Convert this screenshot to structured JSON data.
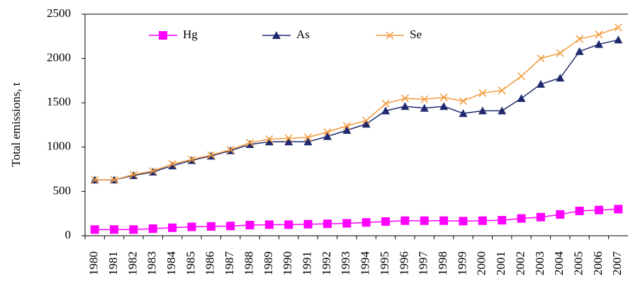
{
  "chart_data": {
    "type": "line",
    "y_label": "Total emissions, t",
    "categories": [
      "1980",
      "1981",
      "1982",
      "1983",
      "1984",
      "1985",
      "1986",
      "1987",
      "1988",
      "1989",
      "1990",
      "1991",
      "1992",
      "1993",
      "1994",
      "1995",
      "1996",
      "1997",
      "1998",
      "1999",
      "2000",
      "2001",
      "2002",
      "2003",
      "2004",
      "2005",
      "2006",
      "2007"
    ],
    "series": [
      {
        "name": "Hg",
        "color": "#ff00ff",
        "marker": "square",
        "values": [
          70,
          70,
          70,
          80,
          90,
          100,
          105,
          110,
          120,
          125,
          125,
          130,
          135,
          140,
          150,
          160,
          170,
          170,
          170,
          165,
          170,
          175,
          195,
          210,
          240,
          280,
          290,
          300
        ]
      },
      {
        "name": "As",
        "color": "#1f2a6e",
        "marker": "triangle",
        "values": [
          630,
          630,
          680,
          720,
          790,
          850,
          900,
          960,
          1030,
          1060,
          1060,
          1060,
          1120,
          1190,
          1260,
          1410,
          1460,
          1440,
          1460,
          1380,
          1410,
          1410,
          1550,
          1710,
          1780,
          2080,
          2160,
          2210
        ]
      },
      {
        "name": "Se",
        "color": "#f39a3c",
        "marker": "x",
        "values": [
          630,
          630,
          690,
          730,
          810,
          860,
          910,
          970,
          1050,
          1090,
          1100,
          1110,
          1170,
          1240,
          1300,
          1490,
          1550,
          1540,
          1560,
          1520,
          1610,
          1640,
          1800,
          2000,
          2060,
          2220,
          2270,
          2350
        ]
      }
    ],
    "ylim": [
      0,
      2500
    ],
    "yticks": [
      0,
      500,
      1000,
      1500,
      2000,
      2500
    ],
    "grid": false,
    "legend": "top-left"
  }
}
